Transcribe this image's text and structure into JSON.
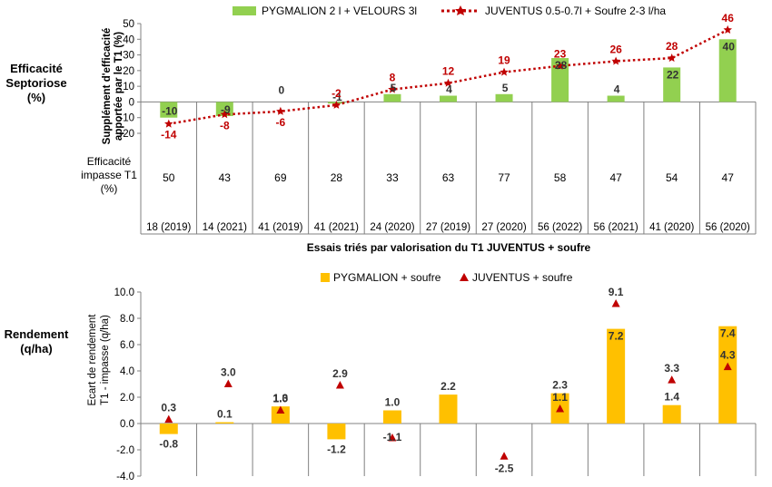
{
  "colors": {
    "green_bar": "#92d050",
    "orange_bar": "#ffc000",
    "red_series": "#c00000",
    "grid": "#d9d9d9",
    "axis": "#808080"
  },
  "top_section_label": [
    "Efficacité",
    "Septoriose",
    "(%)"
  ],
  "bottom_section_label": [
    "Rendement",
    "(q/ha)"
  ],
  "t1_row_label": [
    "Efficacité",
    "impasse T1",
    "(%)"
  ],
  "trials": [
    "18 (2019)",
    "14 (2021)",
    "41 (2019)",
    "41 (2021)",
    "24 (2020)",
    "27 (2019)",
    "27 (2020)",
    "56 (2022)",
    "56 (2021)",
    "41 (2020)",
    "56 (2020)"
  ],
  "t1_efficacy": [
    "50",
    "43",
    "69",
    "28",
    "33",
    "63",
    "77",
    "58",
    "47",
    "54",
    "47"
  ],
  "x_axis_title": "Essais triés par valorisation du T1  JUVENTUS + soufre",
  "chart_data": [
    {
      "type": "bar",
      "ylabel": [
        "Supplément d'efficacité",
        "apportée par le T1 (%)"
      ],
      "ylim": [
        -20,
        50
      ],
      "yticks": [
        -20,
        -10,
        0,
        10,
        20,
        30,
        40,
        50
      ],
      "grid": false,
      "legend": "top",
      "categories": [
        "18 (2019)",
        "14 (2021)",
        "41 (2019)",
        "41 (2021)",
        "24 (2020)",
        "27 (2019)",
        "27 (2020)",
        "56 (2022)",
        "56 (2021)",
        "41 (2020)",
        "56 (2020)"
      ],
      "series": [
        {
          "name": "PYGMALION 2 l + VELOURS 3l",
          "kind": "bar",
          "values": [
            -10,
            -9,
            0,
            -1,
            5,
            4,
            5,
            28,
            4,
            22,
            40
          ]
        },
        {
          "name": "JUVENTUS 0.5-0.7l + Soufre 2-3 l/ha",
          "kind": "line",
          "values": [
            -14,
            -8,
            -6,
            -2,
            8,
            12,
            19,
            23,
            26,
            28,
            46
          ]
        }
      ]
    },
    {
      "type": "bar",
      "ylabel": [
        "Ecart de rendement",
        "T1 - impasse (q/ha)"
      ],
      "ylim": [
        -4,
        10
      ],
      "yticks": [
        "-4.0",
        "-2.0",
        "0.0",
        "2.0",
        "4.0",
        "6.0",
        "8.0",
        "10.0"
      ],
      "grid": false,
      "legend": "top",
      "categories": [
        "18 (2019)",
        "14 (2021)",
        "41 (2019)",
        "41 (2021)",
        "24 (2020)",
        "27 (2019)",
        "27 (2020)",
        "56 (2022)",
        "56 (2021)",
        "41 (2020)",
        "56 (2020)"
      ],
      "series": [
        {
          "name": "PYGMALION + soufre",
          "kind": "bar",
          "values": [
            -0.8,
            0.1,
            1.3,
            -1.2,
            1.0,
            2.2,
            null,
            2.3,
            7.2,
            1.4,
            7.4
          ]
        },
        {
          "name": "JUVENTUS + soufre",
          "kind": "point",
          "values": [
            0.3,
            3.0,
            1.0,
            2.9,
            -1.1,
            null,
            -2.5,
            1.1,
            9.1,
            3.3,
            4.3
          ]
        }
      ]
    }
  ]
}
